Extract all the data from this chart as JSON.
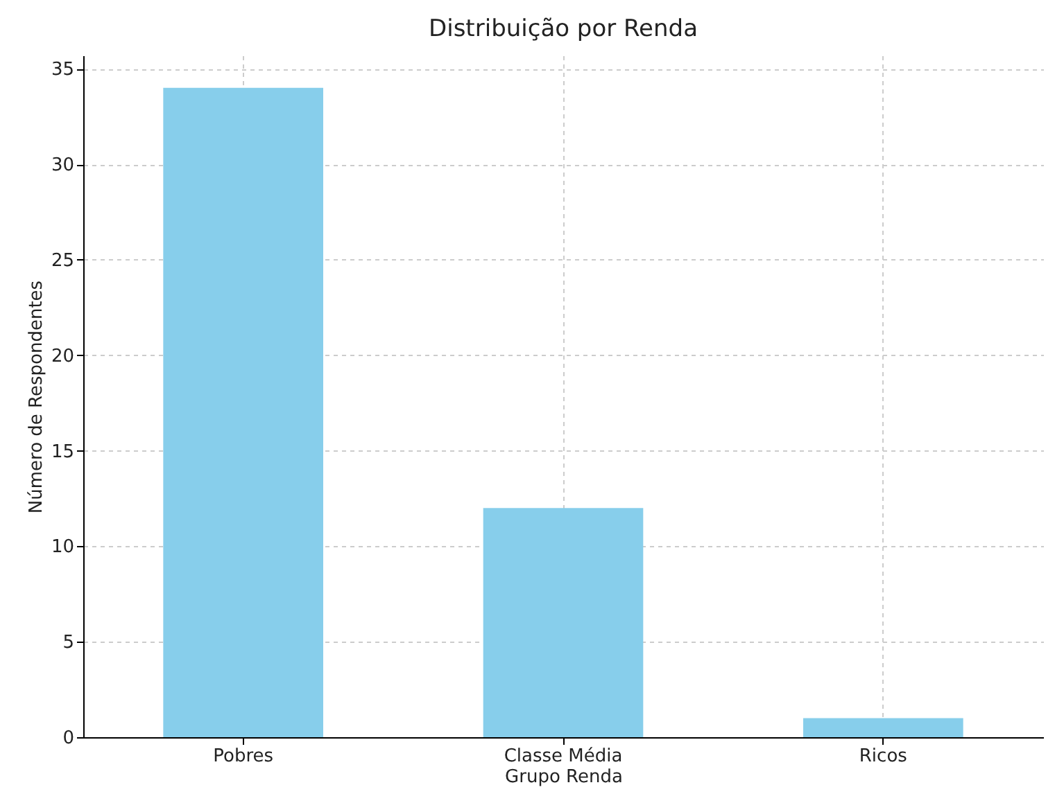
{
  "chart_data": {
    "type": "bar",
    "title": "Distribuição por Renda",
    "xlabel": "Grupo Renda",
    "ylabel": "Número de Respondentes",
    "categories": [
      "Pobres",
      "Classe Média",
      "Ricos"
    ],
    "values": [
      34,
      12,
      1
    ],
    "color": "#87ceeb",
    "ylim": [
      0,
      35.7
    ],
    "yticks": [
      0,
      5,
      10,
      15,
      20,
      25,
      30,
      35
    ],
    "grid": true
  }
}
